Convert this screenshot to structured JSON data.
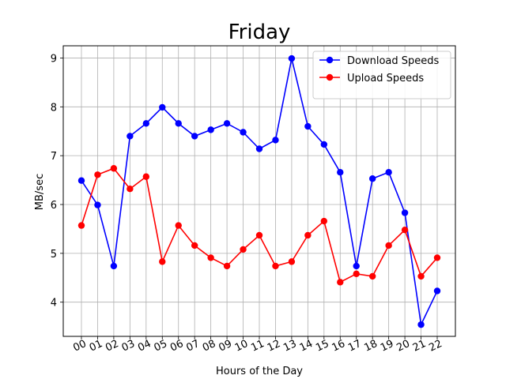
{
  "chart_data": {
    "type": "line",
    "title": "Friday",
    "xlabel": "Hours of the Day",
    "ylabel": "MB/sec",
    "categories": [
      "00",
      "01",
      "02",
      "03",
      "04",
      "05",
      "06",
      "07",
      "08",
      "09",
      "10",
      "11",
      "12",
      "13",
      "14",
      "15",
      "16",
      "17",
      "18",
      "19",
      "20",
      "21",
      "22"
    ],
    "ylim": [
      3.3,
      9.25
    ],
    "yticks": [
      4,
      5,
      6,
      7,
      8,
      9
    ],
    "grid": true,
    "legend_position": "top-right",
    "series": [
      {
        "name": "Download Speeds",
        "color": "#0000ff",
        "values": [
          6.49,
          5.99,
          4.74,
          7.4,
          7.66,
          7.99,
          7.66,
          7.4,
          7.53,
          7.66,
          7.48,
          7.14,
          7.32,
          8.99,
          7.6,
          7.23,
          6.66,
          4.74,
          6.53,
          6.66,
          5.83,
          3.54,
          4.23
        ]
      },
      {
        "name": "Upload Speeds",
        "color": "#ff0000",
        "values": [
          5.57,
          6.61,
          6.74,
          6.32,
          6.57,
          4.83,
          5.57,
          5.16,
          4.91,
          4.74,
          5.08,
          5.37,
          4.74,
          4.83,
          5.37,
          5.66,
          4.41,
          4.58,
          4.53,
          5.16,
          5.48,
          4.53,
          4.91
        ]
      }
    ]
  }
}
